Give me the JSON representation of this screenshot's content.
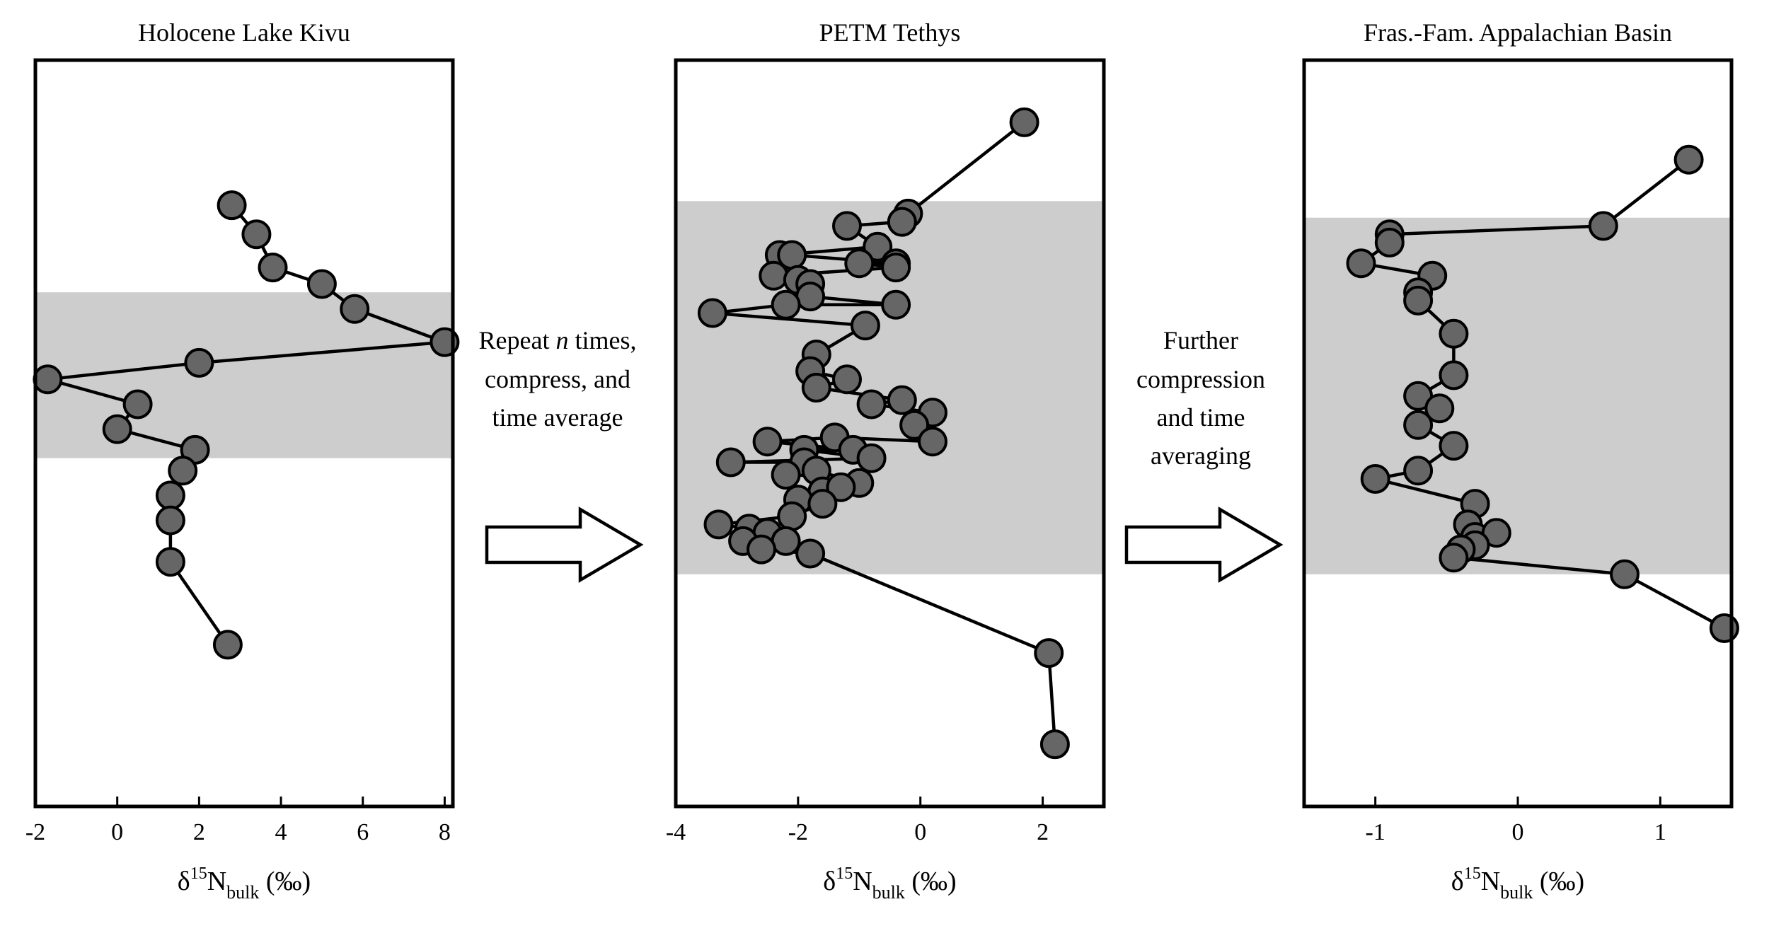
{
  "colors": {
    "shade": "#cdcdcd",
    "marker": "#666666",
    "line": "#000000",
    "frame": "#000000"
  },
  "arrows": [
    {
      "lines": [
        "Repeat ",
        "n",
        " times,",
        "compress, and",
        "time average"
      ]
    },
    {
      "lines": [
        "Further",
        "compression",
        "and time",
        "averaging"
      ]
    }
  ],
  "chart_data": [
    {
      "type": "line",
      "title": "Holocene Lake Kivu",
      "xlabel": "δ15Nbulk (‰)",
      "xlabel_parts": {
        "pre": "δ",
        "sup": "15",
        "main": "N",
        "sub": "bulk",
        "post": " (‰)"
      },
      "xlim": [
        -2,
        8.2
      ],
      "ylim": [
        0,
        18
      ],
      "xticks": [
        -2,
        0,
        2,
        4,
        6,
        8
      ],
      "tick_labels": [
        "-2",
        "0",
        "2",
        "4",
        "6",
        "8"
      ],
      "shaded_band": [
        8.4,
        12.4
      ],
      "x": [
        2.8,
        3.4,
        3.8,
        5.0,
        5.8,
        8.0,
        2.0,
        -1.7,
        0.5,
        0.0,
        1.9,
        1.6,
        1.3,
        1.3,
        1.3,
        2.7
      ],
      "y": [
        14.5,
        13.8,
        13.0,
        12.6,
        12.0,
        11.2,
        10.7,
        10.3,
        9.7,
        9.1,
        8.6,
        8.1,
        7.5,
        6.9,
        5.9,
        3.9
      ]
    },
    {
      "type": "line",
      "title": "PETM Tethys",
      "xlabel": "δ15Nbulk (‰)",
      "xlabel_parts": {
        "pre": "δ",
        "sup": "15",
        "main": "N",
        "sub": "bulk",
        "post": " (‰)"
      },
      "xlim": [
        -4,
        3
      ],
      "ylim": [
        0,
        18
      ],
      "xticks": [
        -4,
        -2,
        0,
        2
      ],
      "tick_labels": [
        "-4",
        "-2",
        "0",
        "2"
      ],
      "shaded_band": [
        5.6,
        14.6
      ],
      "x": [
        1.7,
        -0.2,
        -0.3,
        -1.2,
        -0.7,
        -2.3,
        -2.1,
        -0.4,
        -1.0,
        -0.4,
        -2.4,
        -2.0,
        -1.8,
        -1.8,
        -0.4,
        -2.2,
        -3.4,
        -0.9,
        -1.7,
        -1.8,
        -1.2,
        -1.7,
        -0.3,
        -0.8,
        0.2,
        -0.1,
        0.2,
        -1.4,
        -2.5,
        -1.1,
        -1.9,
        -0.8,
        -3.1,
        -1.9,
        -2.2,
        -1.7,
        -1.0,
        -1.6,
        -1.3,
        -2.0,
        -1.6,
        -2.1,
        -3.3,
        -2.8,
        -2.5,
        -2.9,
        -2.2,
        -2.6,
        -1.8,
        2.1,
        2.2
      ],
      "y": [
        16.5,
        14.3,
        14.1,
        14.0,
        13.5,
        13.3,
        13.3,
        13.1,
        13.1,
        13.0,
        12.8,
        12.7,
        12.6,
        12.3,
        12.1,
        12.1,
        11.9,
        11.6,
        10.9,
        10.5,
        10.3,
        10.1,
        9.8,
        9.7,
        9.5,
        9.2,
        8.8,
        8.9,
        8.8,
        8.6,
        8.6,
        8.4,
        8.3,
        8.3,
        8.0,
        8.1,
        7.8,
        7.6,
        7.7,
        7.4,
        7.3,
        7.0,
        6.8,
        6.7,
        6.6,
        6.4,
        6.4,
        6.2,
        6.1,
        3.7,
        1.5
      ]
    },
    {
      "type": "line",
      "title": "Fras.-Fam. Appalachian Basin",
      "xlabel": "δ15Nbulk (‰)",
      "xlabel_parts": {
        "pre": "δ",
        "sup": "15",
        "main": "N",
        "sub": "bulk",
        "post": " (‰)"
      },
      "xlim": [
        -1.5,
        1.5
      ],
      "ylim": [
        0,
        18
      ],
      "xticks": [
        -1,
        0,
        1
      ],
      "tick_labels": [
        "-1",
        "0",
        "1"
      ],
      "shaded_band": [
        5.6,
        14.2
      ],
      "x": [
        1.2,
        0.6,
        -0.9,
        -0.9,
        -1.1,
        -0.6,
        -0.7,
        -0.7,
        -0.45,
        -0.45,
        -0.7,
        -0.55,
        -0.7,
        -0.45,
        -0.7,
        -1.0,
        -0.3,
        -0.35,
        -0.3,
        -0.15,
        -0.3,
        -0.4,
        -0.45,
        0.75,
        1.45
      ],
      "y": [
        15.6,
        14.0,
        13.8,
        13.6,
        13.1,
        12.8,
        12.4,
        12.2,
        11.4,
        10.4,
        9.9,
        9.6,
        9.2,
        8.7,
        8.1,
        7.9,
        7.3,
        6.8,
        6.5,
        6.6,
        6.3,
        6.2,
        6.0,
        5.6,
        4.3
      ]
    }
  ]
}
